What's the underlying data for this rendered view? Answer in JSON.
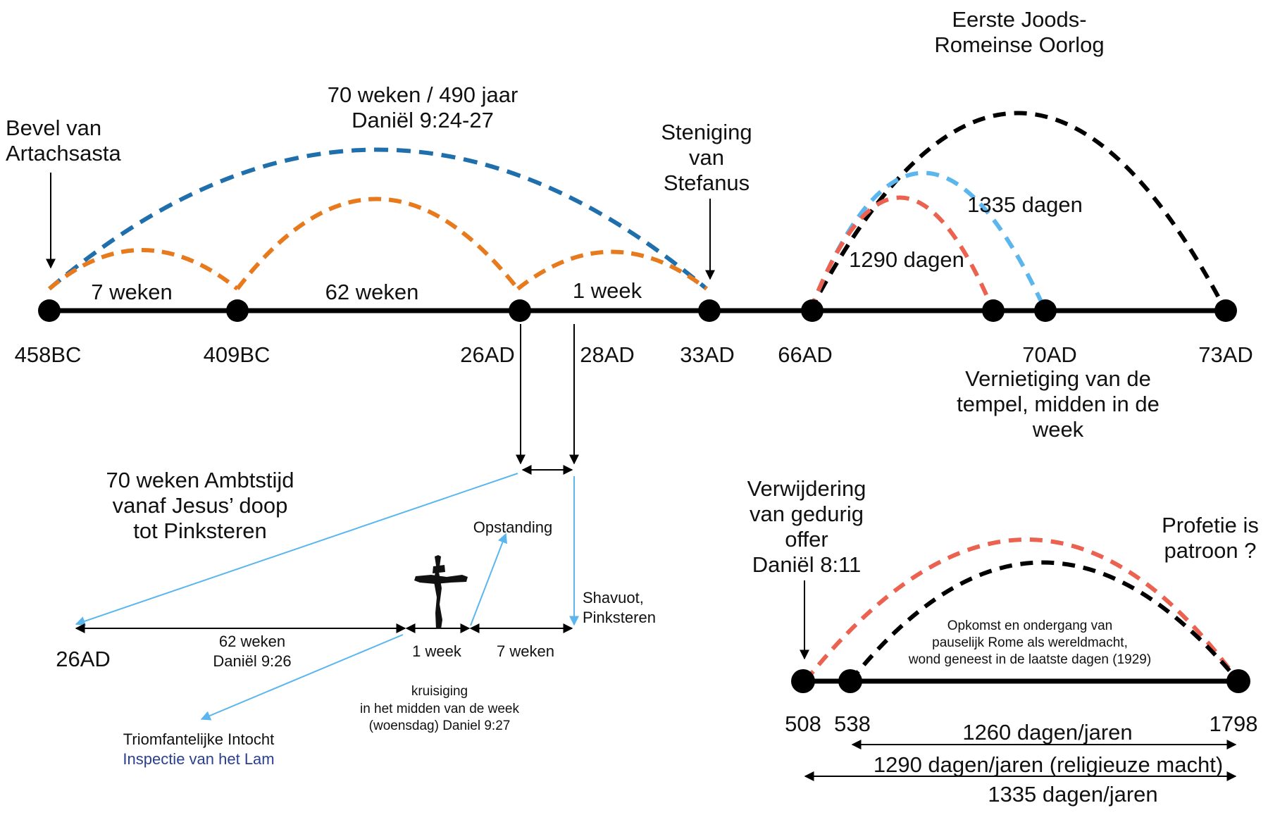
{
  "colors": {
    "axis": "#000000",
    "blue_dashed": "#1f6fad",
    "orange_dashed": "#e87a1e",
    "light_blue_dashed": "#5bb6ee",
    "red_dashed": "#ec6251",
    "black_dashed": "#000000",
    "pointer_arrow": "#5bb6ee"
  },
  "top_timeline": {
    "points": [
      "458BC",
      "409BC",
      "26AD",
      "28AD",
      "33AD",
      "66AD",
      "70AD",
      "73AD"
    ],
    "segment_labels": {
      "seven_weeks": "7 weken",
      "sixty_two_weeks": "62 weken",
      "one_week": "1 week",
      "days_1290": "1290 dagen",
      "days_1335": "1335 dagen"
    },
    "captions": {
      "artaxerxes": [
        "Bevel van",
        "Artachsasta"
      ],
      "seventy_weeks": [
        "70 weken / 490 jaar",
        "Daniël 9:24-27"
      ],
      "stephen": [
        "Steniging",
        "van",
        "Stefanus"
      ],
      "war": [
        "Eerste Joods-",
        "Romeinse Oorlog"
      ],
      "temple": [
        "Vernietiging van de",
        "tempel, midden in de",
        "week"
      ]
    }
  },
  "ministry_timeline": {
    "title": [
      "70 weken Ambtstijd",
      "vanaf Jesus’ doop",
      "tot Pinksteren"
    ],
    "start": "26AD",
    "segments": {
      "sixty_two": [
        "62 weken",
        "Daniël 9:26"
      ],
      "one_week": "1 week",
      "seven_weeks": "7 weken"
    },
    "resurrection": "Opstanding",
    "shavuot": [
      "Shavuot,",
      "Pinksteren"
    ],
    "crucifixion": [
      "kruisiging",
      "in het midden van de week",
      "(woensdag) Daniel 9:27"
    ],
    "triumph": [
      "Triomfantelijke Intocht",
      "Inspectie van het Lam"
    ]
  },
  "papal_timeline": {
    "removal": [
      "Verwijdering",
      "van gedurig",
      "offer",
      "Daniël 8:11"
    ],
    "pattern": [
      "Profetie is",
      "patroon ?"
    ],
    "rome": [
      "Opkomst en ondergang van",
      "pauselijk Rome als wereldmacht,",
      "wond geneest in de laatste dagen (1929)"
    ],
    "points": [
      "508",
      "538",
      "1798"
    ],
    "spans": [
      "1260 dagen/jaren",
      "1290 dagen/jaren (religieuze macht)",
      "1335 dagen/jaren"
    ]
  }
}
